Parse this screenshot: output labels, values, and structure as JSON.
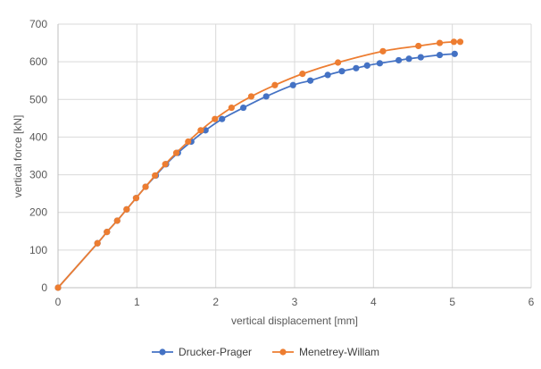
{
  "chart_data": {
    "type": "scatter",
    "title": "",
    "xlabel": "vertical displacement [mm]",
    "ylabel": "vertical force [kN]",
    "xlim": [
      0,
      6
    ],
    "ylim": [
      0,
      700
    ],
    "x_ticks": [
      "0",
      "1",
      "2",
      "3",
      "4",
      "5",
      "6"
    ],
    "y_ticks": [
      "0",
      "100",
      "200",
      "300",
      "400",
      "500",
      "600",
      "700"
    ],
    "grid": true,
    "legend_position": "bottom",
    "series": [
      {
        "name": "Drucker-Prager",
        "color": "#4472C4",
        "points": [
          [
            0,
            0
          ],
          [
            0.5,
            118
          ],
          [
            0.62,
            148
          ],
          [
            0.75,
            178
          ],
          [
            0.87,
            208
          ],
          [
            0.99,
            238
          ],
          [
            1.11,
            268
          ],
          [
            1.24,
            298
          ],
          [
            1.37,
            328
          ],
          [
            1.52,
            358
          ],
          [
            1.69,
            388
          ],
          [
            1.87,
            418
          ],
          [
            2.08,
            448
          ],
          [
            2.35,
            478
          ],
          [
            2.64,
            508
          ],
          [
            2.98,
            538
          ],
          [
            3.2,
            550
          ],
          [
            3.42,
            565
          ],
          [
            3.6,
            575
          ],
          [
            3.78,
            583
          ],
          [
            3.92,
            590
          ],
          [
            4.08,
            596
          ],
          [
            4.32,
            604
          ],
          [
            4.45,
            608
          ],
          [
            4.6,
            612
          ],
          [
            4.84,
            618
          ],
          [
            5.03,
            621
          ]
        ]
      },
      {
        "name": "Menetrey-Willam",
        "color": "#ED7D31",
        "points": [
          [
            0,
            0
          ],
          [
            0.5,
            118
          ],
          [
            0.62,
            148
          ],
          [
            0.75,
            178
          ],
          [
            0.87,
            208
          ],
          [
            0.99,
            238
          ],
          [
            1.11,
            268
          ],
          [
            1.23,
            298
          ],
          [
            1.36,
            328
          ],
          [
            1.5,
            358
          ],
          [
            1.65,
            388
          ],
          [
            1.81,
            418
          ],
          [
            1.99,
            448
          ],
          [
            2.2,
            478
          ],
          [
            2.45,
            508
          ],
          [
            2.75,
            538
          ],
          [
            3.1,
            568
          ],
          [
            3.55,
            598
          ],
          [
            4.12,
            628
          ],
          [
            4.57,
            642
          ],
          [
            4.84,
            650
          ],
          [
            5.02,
            653
          ],
          [
            5.1,
            653
          ]
        ]
      }
    ]
  }
}
